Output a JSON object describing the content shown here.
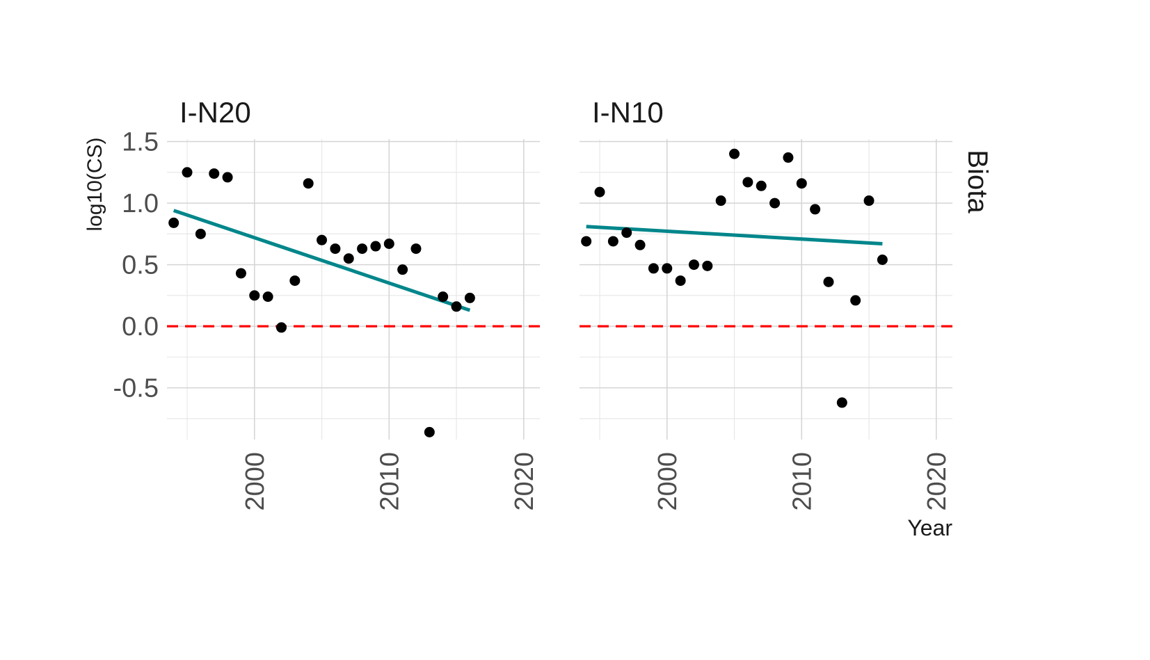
{
  "chart_data": {
    "type": "scatter",
    "title": "",
    "xlabel": "Year",
    "ylabel": "log10(CS)",
    "strip_label": "Biota",
    "xlim": [
      1993.5,
      2021.2
    ],
    "ylim": [
      -0.92,
      1.52
    ],
    "x_ticks": [
      2000,
      2010,
      2020
    ],
    "y_ticks": [
      -0.5,
      0.0,
      0.5,
      1.0,
      1.5
    ],
    "y_tick_labels": [
      "-0.5",
      "0.0",
      "0.5",
      "1.0",
      "1.5"
    ],
    "reference_line": {
      "y": 0.0,
      "color": "#ff0000",
      "style": "dashed"
    },
    "colors": {
      "points": "#000000",
      "trend": "#00868b",
      "reference": "#ff0000"
    },
    "grid": true,
    "legend": "none",
    "panels": [
      {
        "name": "I-N20",
        "points": [
          [
            1994,
            0.84
          ],
          [
            1995,
            1.25
          ],
          [
            1996,
            0.75
          ],
          [
            1997,
            1.24
          ],
          [
            1998,
            1.21
          ],
          [
            1999,
            0.43
          ],
          [
            2000,
            0.25
          ],
          [
            2001,
            0.24
          ],
          [
            2002,
            -0.01
          ],
          [
            2003,
            0.37
          ],
          [
            2004,
            1.16
          ],
          [
            2005,
            0.7
          ],
          [
            2006,
            0.63
          ],
          [
            2007,
            0.55
          ],
          [
            2008,
            0.63
          ],
          [
            2009,
            0.65
          ],
          [
            2010,
            0.67
          ],
          [
            2011,
            0.46
          ],
          [
            2012,
            0.63
          ],
          [
            2013,
            -0.86
          ],
          [
            2014,
            0.24
          ],
          [
            2015,
            0.16
          ],
          [
            2016,
            0.23
          ]
        ],
        "trend": [
          [
            1994,
            0.94
          ],
          [
            2016,
            0.13
          ]
        ]
      },
      {
        "name": "I-N10",
        "points": [
          [
            1994,
            0.69
          ],
          [
            1995,
            1.09
          ],
          [
            1996,
            0.69
          ],
          [
            1997,
            0.76
          ],
          [
            1998,
            0.66
          ],
          [
            1999,
            0.47
          ],
          [
            2000,
            0.47
          ],
          [
            2001,
            0.37
          ],
          [
            2002,
            0.5
          ],
          [
            2003,
            0.49
          ],
          [
            2004,
            1.02
          ],
          [
            2005,
            1.4
          ],
          [
            2006,
            1.17
          ],
          [
            2007,
            1.14
          ],
          [
            2008,
            1.0
          ],
          [
            2009,
            1.37
          ],
          [
            2010,
            1.16
          ],
          [
            2011,
            0.95
          ],
          [
            2012,
            0.36
          ],
          [
            2013,
            -0.62
          ],
          [
            2014,
            0.21
          ],
          [
            2015,
            1.02
          ],
          [
            2016,
            0.54
          ]
        ],
        "trend": [
          [
            1994,
            0.81
          ],
          [
            2016,
            0.67
          ]
        ]
      }
    ]
  }
}
